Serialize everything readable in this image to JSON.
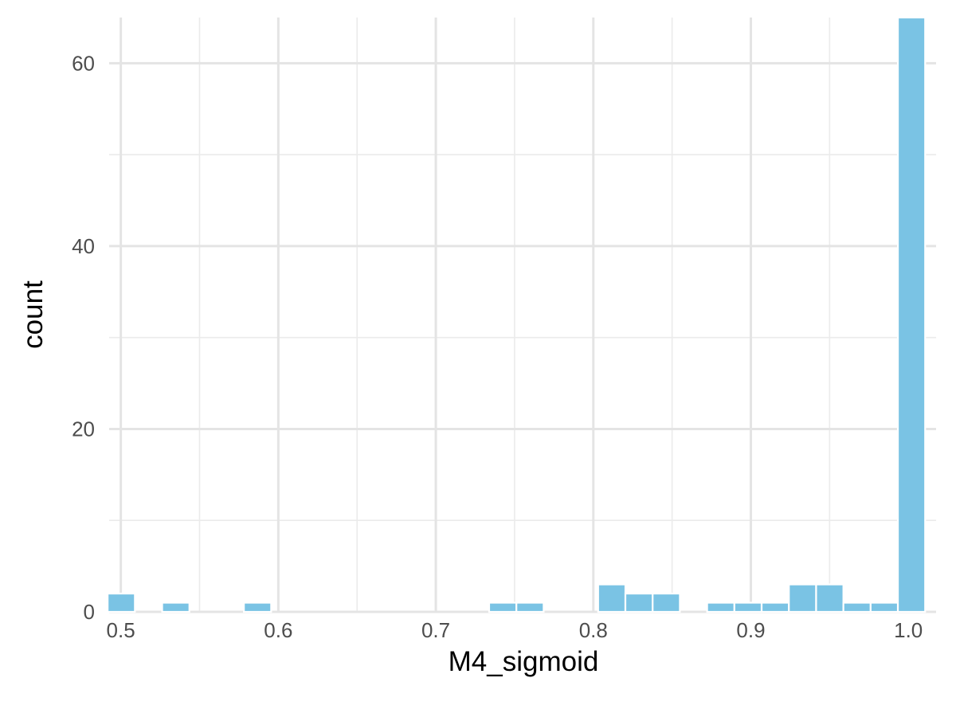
{
  "chart_data": {
    "type": "bar",
    "title": "",
    "xlabel": "M4_sigmoid",
    "ylabel": "count",
    "xlim": [
      0.4926,
      1.0176
    ],
    "ylim": [
      0,
      65
    ],
    "x_ticks": [
      0.5,
      0.6,
      0.7,
      0.8,
      0.9,
      1.0
    ],
    "x_tick_labels": [
      "0.5",
      "0.6",
      "0.7",
      "0.8",
      "0.9",
      "1.0"
    ],
    "y_ticks": [
      0,
      20,
      40,
      60
    ],
    "y_tick_labels": [
      "0",
      "20",
      "40",
      "60"
    ],
    "x_minor_ticks": [
      0.55,
      0.65,
      0.75,
      0.85,
      0.95
    ],
    "y_minor_ticks": [
      10,
      30,
      50
    ],
    "grid": true,
    "bar_color": "#7AC3E4",
    "bin_width": 0.0173,
    "bins": [
      {
        "x": 0.5003,
        "count": 2
      },
      {
        "x": 0.5176,
        "count": 0
      },
      {
        "x": 0.5349,
        "count": 1
      },
      {
        "x": 0.5522,
        "count": 0
      },
      {
        "x": 0.5695,
        "count": 0
      },
      {
        "x": 0.5868,
        "count": 1
      },
      {
        "x": 0.6041,
        "count": 0
      },
      {
        "x": 0.6214,
        "count": 0
      },
      {
        "x": 0.6387,
        "count": 0
      },
      {
        "x": 0.656,
        "count": 0
      },
      {
        "x": 0.6733,
        "count": 0
      },
      {
        "x": 0.6906,
        "count": 0
      },
      {
        "x": 0.7079,
        "count": 0
      },
      {
        "x": 0.7252,
        "count": 0
      },
      {
        "x": 0.7425,
        "count": 1
      },
      {
        "x": 0.7598,
        "count": 1
      },
      {
        "x": 0.7771,
        "count": 0
      },
      {
        "x": 0.7944,
        "count": 0
      },
      {
        "x": 0.8117,
        "count": 3
      },
      {
        "x": 0.829,
        "count": 2
      },
      {
        "x": 0.8463,
        "count": 2
      },
      {
        "x": 0.8636,
        "count": 0
      },
      {
        "x": 0.8809,
        "count": 1
      },
      {
        "x": 0.8982,
        "count": 1
      },
      {
        "x": 0.9155,
        "count": 1
      },
      {
        "x": 0.9328,
        "count": 3
      },
      {
        "x": 0.9501,
        "count": 3
      },
      {
        "x": 0.9674,
        "count": 1
      },
      {
        "x": 0.9847,
        "count": 1
      },
      {
        "x": 1.002,
        "count": 65
      }
    ]
  }
}
